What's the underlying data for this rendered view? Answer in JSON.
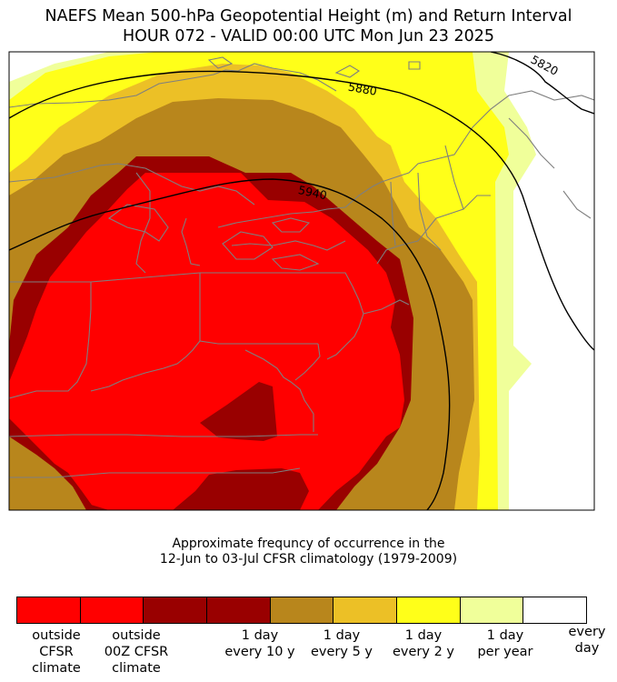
{
  "title": {
    "line1": "NAEFS Mean 500-hPa Geopotential Height (m) and Return Interval",
    "line2": "HOUR 072 - VALID 00:00 UTC Mon Jun 23 2025"
  },
  "map": {
    "contours": [
      {
        "label": "5820"
      },
      {
        "label": "5880"
      },
      {
        "label": "5940"
      }
    ],
    "colors": {
      "outside_cfsr": "#ff0000",
      "outside_00z": "#990000",
      "every_10y": "#b8861c",
      "every_5y": "#ecc026",
      "every_2y": "#ffff19",
      "per_year": "#f0ff9a",
      "every_day": "#ffffff",
      "borders": "#7f7f7f",
      "contour": "#000000"
    }
  },
  "caption": {
    "line1": "Approximate frequncy of occurrence in the",
    "line2": "12-Jun to 03-Jul CFSR climatology (1979-2009)"
  },
  "legend": {
    "swatches": [
      "#ff0000",
      "#ff0000",
      "#990000",
      "#990000",
      "#b8861c",
      "#ecc026",
      "#ffff19",
      "#f0ff9a",
      "#ffffff"
    ],
    "labels": [
      "outside\nCFSR\nclimate",
      "outside\n00Z CFSR\nclimate",
      "1 day\nevery 10 y",
      "1 day\nevery 5 y",
      "1 day\nevery 2 y",
      "1 day\nper year",
      "every\nday"
    ]
  }
}
